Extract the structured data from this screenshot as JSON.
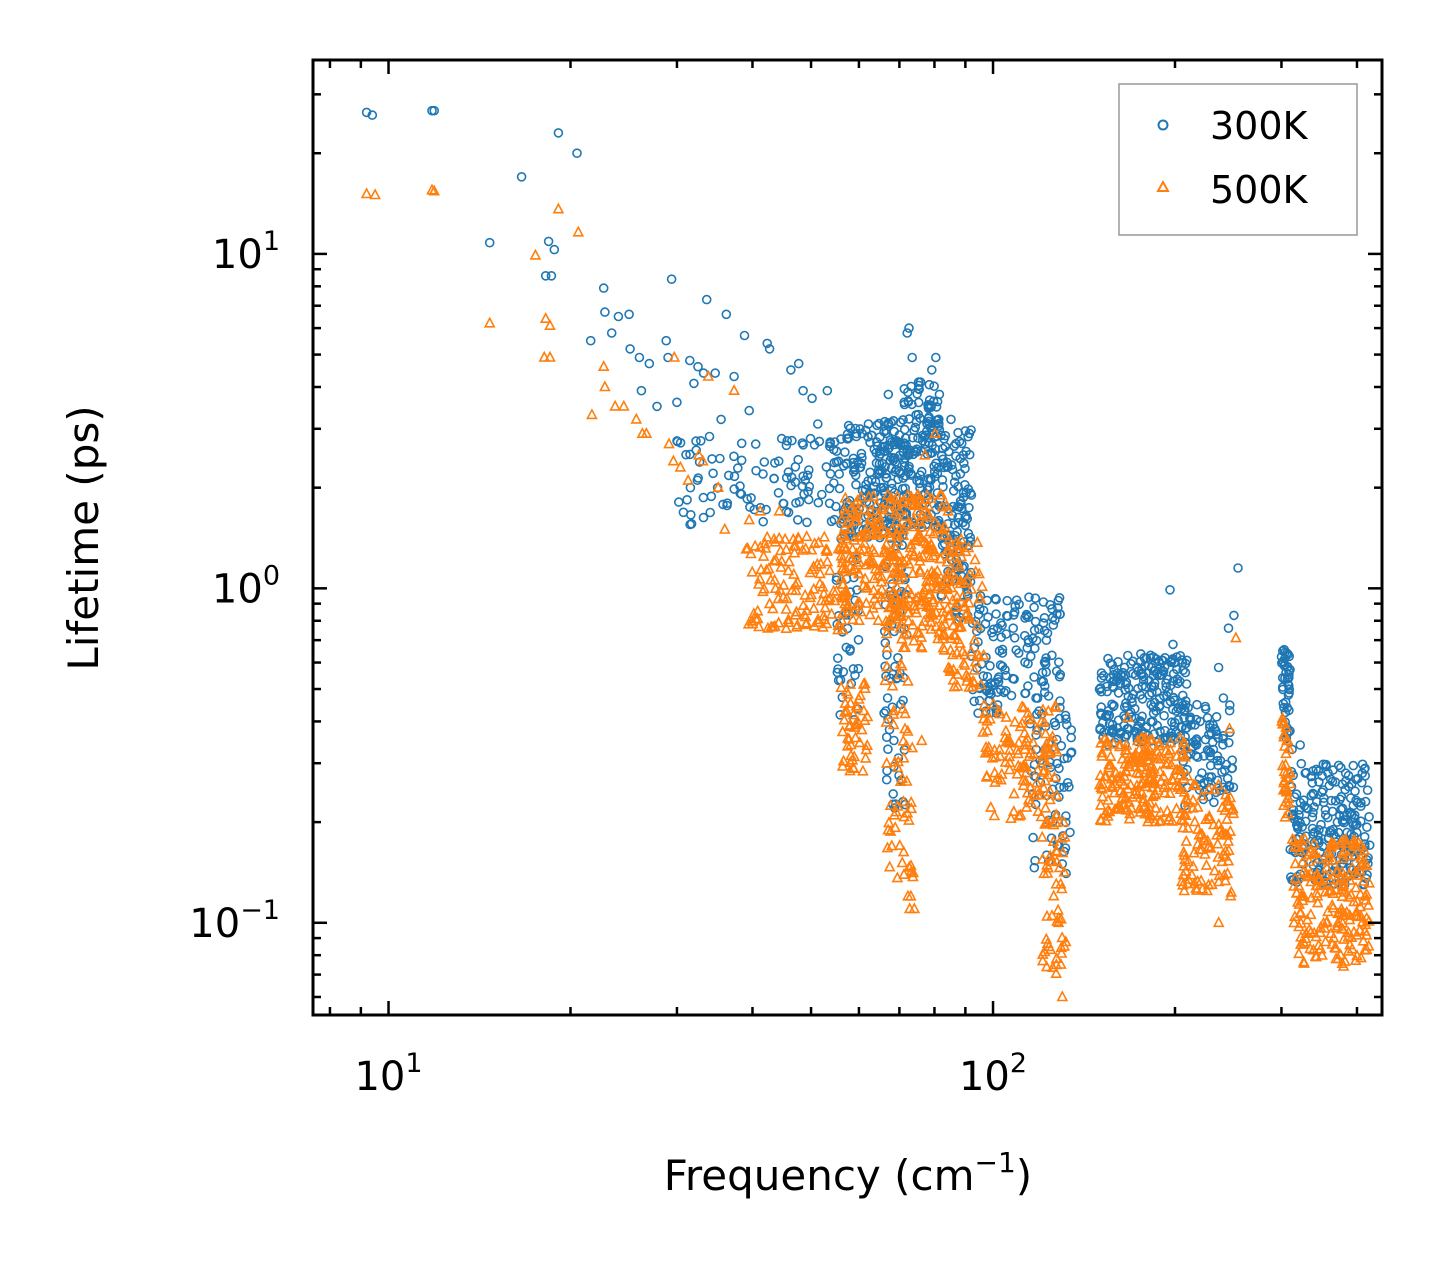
{
  "chart_data": {
    "type": "scatter",
    "title": "",
    "xlabel": "Frequency (cm",
    "xlabel_sup": "−1",
    "xlabel_suffix": ")",
    "ylabel": "Lifetime (ps)",
    "xscale": "log",
    "yscale": "log",
    "xlim": [
      7.5,
      440
    ],
    "ylim": [
      0.053,
      38
    ],
    "x_ticks": [
      {
        "value": 10,
        "base": "10",
        "exp": "1"
      },
      {
        "value": 100,
        "base": "10",
        "exp": "2"
      }
    ],
    "y_ticks": [
      {
        "value": 0.1,
        "base": "10",
        "exp": "−1"
      },
      {
        "value": 1,
        "base": "10",
        "exp": "0"
      },
      {
        "value": 10,
        "base": "10",
        "exp": "1"
      }
    ],
    "legend_position": "top-right",
    "series": [
      {
        "name": "300K",
        "marker": "circle",
        "color": "#1f77b4",
        "points": [
          [
            9.2,
            26.5
          ],
          [
            9.4,
            26
          ],
          [
            11.8,
            26.8
          ],
          [
            11.9,
            26.8
          ],
          [
            14.7,
            10.8
          ],
          [
            16.6,
            17
          ],
          [
            18.4,
            10.9
          ],
          [
            18.8,
            10.3
          ],
          [
            18.2,
            8.6
          ],
          [
            18.6,
            8.6
          ],
          [
            19.1,
            23
          ],
          [
            20.5,
            20
          ],
          [
            21.6,
            5.5
          ],
          [
            22.7,
            7.9
          ],
          [
            22.8,
            6.7
          ],
          [
            23.4,
            5.8
          ],
          [
            24,
            6.5
          ],
          [
            25,
            6.6
          ],
          [
            25.1,
            5.2
          ],
          [
            26,
            4.9
          ],
          [
            27,
            4.7
          ],
          [
            26.2,
            3.9
          ],
          [
            27.8,
            3.5
          ],
          [
            28.8,
            5.5
          ],
          [
            29,
            4.9
          ],
          [
            29.4,
            8.4
          ],
          [
            30,
            3.6
          ],
          [
            31.5,
            4.8
          ],
          [
            32,
            4.1
          ],
          [
            32.5,
            4.6
          ],
          [
            33.2,
            4.4
          ],
          [
            33.6,
            7.3
          ],
          [
            34.7,
            4.4
          ],
          [
            35.5,
            3.2
          ],
          [
            36.2,
            6.6
          ],
          [
            37.3,
            4.3
          ],
          [
            38.8,
            5.7
          ],
          [
            39.5,
            3.4
          ],
          [
            40.5,
            2.7
          ],
          [
            42.3,
            5.4
          ],
          [
            42.7,
            5.2
          ],
          [
            44.2,
            2.4
          ],
          [
            46.3,
            4.5
          ],
          [
            47.7,
            4.7
          ],
          [
            48.5,
            3.9
          ],
          [
            50.2,
            3.7
          ],
          [
            51.3,
            3.1
          ],
          [
            53.2,
            3.9
          ],
          [
            54.5,
            2.6
          ],
          [
            55.5,
            2.4
          ],
          [
            57.5,
            2.8
          ],
          [
            58,
            0.65
          ],
          [
            59.1,
            0.55
          ],
          [
            60.2,
            2.3
          ],
          [
            62.2,
            3.1
          ],
          [
            64.7,
            2.2
          ],
          [
            65.2,
            1.8
          ],
          [
            67.1,
            3.8
          ],
          [
            68,
            0.78
          ],
          [
            69.6,
            0.62
          ],
          [
            70.4,
            0.45
          ],
          [
            71.3,
            3.6
          ],
          [
            72.1,
            5.8
          ],
          [
            72.6,
            6
          ],
          [
            73.5,
            4.9
          ],
          [
            74.6,
            3.3
          ],
          [
            75.5,
            2.1
          ],
          [
            77.2,
            2.7
          ],
          [
            78.5,
            3.1
          ],
          [
            79.2,
            4.5
          ],
          [
            80.4,
            4.9
          ],
          [
            81.2,
            2.3
          ],
          [
            83,
            2.8
          ],
          [
            85.2,
            3.2
          ],
          [
            88.3,
            2.2
          ],
          [
            92.1,
            1.9
          ],
          [
            95.3,
            0.95
          ],
          [
            98.1,
            0.82
          ],
          [
            102.5,
            0.65
          ],
          [
            108,
            0.76
          ],
          [
            114.2,
            0.51
          ],
          [
            117.8,
            0.47
          ],
          [
            120.3,
            0.42
          ],
          [
            124.5,
            0.32
          ],
          [
            127.1,
            0.27
          ],
          [
            128.5,
            0.17
          ],
          [
            130.2,
            0.15
          ],
          [
            157.3,
            0.45
          ],
          [
            162.4,
            0.52
          ],
          [
            167.1,
            0.63
          ],
          [
            172.2,
            0.55
          ],
          [
            176.5,
            0.51
          ],
          [
            181.3,
            0.48
          ],
          [
            186.1,
            0.43
          ],
          [
            189.2,
            0.58
          ],
          [
            192.5,
            0.62
          ],
          [
            196.2,
            0.99
          ],
          [
            198.5,
            0.68
          ],
          [
            202.1,
            0.52
          ],
          [
            205.3,
            0.61
          ],
          [
            208.1,
            0.56
          ],
          [
            212.3,
            0.32
          ],
          [
            216.5,
            0.35
          ],
          [
            220.1,
            0.4
          ],
          [
            226.4,
            0.41
          ],
          [
            231.2,
            0.39
          ],
          [
            236.1,
            0.58
          ],
          [
            240.5,
            0.47
          ],
          [
            245.2,
            0.76
          ],
          [
            250.3,
            0.83
          ],
          [
            254.2,
            1.15
          ],
          [
            301.5,
            0.65
          ],
          [
            305.2,
            0.56
          ],
          [
            308.1,
            0.48
          ],
          [
            312.4,
            0.33
          ],
          [
            322.2,
            0.34
          ],
          [
            328.5,
            0.28
          ],
          [
            336.1,
            0.24
          ],
          [
            343.2,
            0.23
          ],
          [
            355.1,
            0.21
          ],
          [
            365.4,
            0.19
          ],
          [
            371.2,
            0.2
          ],
          [
            378.5,
            0.22
          ],
          [
            383.2,
            0.28
          ],
          [
            392.1,
            0.26
          ],
          [
            401.5,
            0.27
          ],
          [
            408.2,
            0.28
          ]
        ],
        "dense_clusters": [
          {
            "x": [
              30,
              58
            ],
            "y": [
              1.55,
              2.9
            ],
            "n": 110
          },
          {
            "x": [
              56,
              71
            ],
            "y": [
              1.4,
              3.2
            ],
            "n": 180
          },
          {
            "x": [
              55,
              60
            ],
            "y": [
              0.4,
              1.3
            ],
            "n": 35
          },
          {
            "x": [
              66,
              72
            ],
            "y": [
              0.22,
              2.0
            ],
            "n": 70
          },
          {
            "x": [
              71,
              82
            ],
            "y": [
              1.5,
              4.2
            ],
            "n": 150
          },
          {
            "x": [
              82,
              92
            ],
            "y": [
              0.8,
              3.0
            ],
            "n": 120
          },
          {
            "x": [
              92,
              130
            ],
            "y": [
              0.42,
              0.95
            ],
            "n": 140
          },
          {
            "x": [
              115,
              135
            ],
            "y": [
              0.14,
              0.45
            ],
            "n": 60
          },
          {
            "x": [
              150,
              210
            ],
            "y": [
              0.34,
              0.64
            ],
            "n": 220
          },
          {
            "x": [
              205,
              250
            ],
            "y": [
              0.22,
              0.45
            ],
            "n": 90
          },
          {
            "x": [
              300,
              310
            ],
            "y": [
              0.35,
              0.66
            ],
            "n": 40
          },
          {
            "x": [
              310,
              420
            ],
            "y": [
              0.13,
              0.3
            ],
            "n": 210
          }
        ]
      },
      {
        "name": "500K",
        "marker": "triangle",
        "color": "#ff7f0e",
        "points": [
          [
            9.2,
            15.1
          ],
          [
            9.5,
            15
          ],
          [
            11.8,
            15.5
          ],
          [
            11.9,
            15.4
          ],
          [
            14.7,
            6.2
          ],
          [
            17.5,
            9.9
          ],
          [
            18.2,
            6.4
          ],
          [
            18.5,
            6.1
          ],
          [
            18.1,
            4.9
          ],
          [
            18.5,
            4.9
          ],
          [
            19.1,
            13.6
          ],
          [
            20.6,
            11.6
          ],
          [
            21.7,
            3.3
          ],
          [
            22.7,
            4.6
          ],
          [
            22.8,
            4
          ],
          [
            23.7,
            3.5
          ],
          [
            24.5,
            3.5
          ],
          [
            25.7,
            3.2
          ],
          [
            26.3,
            2.9
          ],
          [
            26.7,
            2.9
          ],
          [
            29.1,
            2.7
          ],
          [
            29.6,
            2.4
          ],
          [
            29.7,
            4.9
          ],
          [
            30.4,
            2.3
          ],
          [
            31.3,
            2.1
          ],
          [
            32.6,
            2.5
          ],
          [
            33.1,
            2.4
          ],
          [
            33.8,
            4.3
          ],
          [
            35.1,
            2
          ],
          [
            36,
            1.5
          ],
          [
            37.3,
            3.9
          ],
          [
            39.5,
            1.6
          ],
          [
            41.2,
            1.7
          ],
          [
            44.3,
            1.7
          ],
          [
            45.3,
            1.4
          ],
          [
            47.7,
            1.4
          ],
          [
            50.1,
            1.3
          ],
          [
            53.2,
            1.2
          ],
          [
            55.1,
            0.98
          ],
          [
            56.4,
            0.75
          ],
          [
            58.2,
            0.34
          ],
          [
            58.7,
            0.29
          ],
          [
            59.2,
            0.39
          ],
          [
            61.7,
            0.9
          ],
          [
            66.2,
            1.3
          ],
          [
            68.5,
            0.43
          ],
          [
            70.1,
            0.17
          ],
          [
            71.1,
            0.23
          ],
          [
            72.3,
            0.12
          ],
          [
            72.8,
            0.11
          ],
          [
            73.1,
            0.12
          ],
          [
            74.1,
            0.11
          ],
          [
            75.2,
            1.9
          ],
          [
            76.2,
            0.35
          ],
          [
            77.1,
            2.5
          ],
          [
            78.4,
            1.3
          ],
          [
            80.2,
            2.9
          ],
          [
            82.2,
            1.9
          ],
          [
            84.3,
            1.7
          ],
          [
            88.5,
            1.4
          ],
          [
            93.2,
            0.7
          ],
          [
            96.5,
            0.63
          ],
          [
            100.2,
            0.45
          ],
          [
            106.5,
            0.35
          ],
          [
            112.1,
            0.29
          ],
          [
            117.3,
            0.24
          ],
          [
            122.1,
            0.22
          ],
          [
            127.2,
            0.21
          ],
          [
            128.3,
            0.1
          ],
          [
            129.5,
            0.075
          ],
          [
            130.2,
            0.06
          ],
          [
            131.2,
            0.085
          ],
          [
            155.4,
            0.29
          ],
          [
            162.2,
            0.34
          ],
          [
            167.1,
            0.41
          ],
          [
            172.1,
            0.32
          ],
          [
            178.5,
            0.28
          ],
          [
            185.1,
            0.26
          ],
          [
            195.2,
            0.32
          ],
          [
            204.2,
            0.25
          ],
          [
            214.1,
            0.22
          ],
          [
            218.3,
            0.19
          ],
          [
            224.1,
            0.16
          ],
          [
            230.2,
            0.13
          ],
          [
            236.2,
            0.1
          ],
          [
            240.3,
            0.16
          ],
          [
            246.1,
            0.38
          ],
          [
            252.2,
            0.71
          ],
          [
            300.5,
            0.4
          ],
          [
            305.2,
            0.32
          ],
          [
            310.3,
            0.26
          ],
          [
            316.2,
            0.15
          ],
          [
            325.1,
            0.12
          ],
          [
            335.5,
            0.14
          ],
          [
            344.2,
            0.12
          ],
          [
            356.2,
            0.1
          ],
          [
            366.1,
            0.09
          ],
          [
            372.2,
            0.078
          ],
          [
            380.1,
            0.074
          ],
          [
            395.3,
            0.17
          ],
          [
            408.2,
            0.16
          ]
        ],
        "dense_clusters": [
          {
            "x": [
              39,
              58
            ],
            "y": [
              0.75,
              1.45
            ],
            "n": 130
          },
          {
            "x": [
              56,
              71
            ],
            "y": [
              0.8,
              1.9
            ],
            "n": 170
          },
          {
            "x": [
              56,
              62
            ],
            "y": [
              0.28,
              0.52
            ],
            "n": 45
          },
          {
            "x": [
              66,
              74
            ],
            "y": [
              0.13,
              1.0
            ],
            "n": 70
          },
          {
            "x": [
              71,
              84
            ],
            "y": [
              0.65,
              1.9
            ],
            "n": 150
          },
          {
            "x": [
              84,
              96
            ],
            "y": [
              0.5,
              1.4
            ],
            "n": 90
          },
          {
            "x": [
              96,
              128
            ],
            "y": [
              0.2,
              0.45
            ],
            "n": 120
          },
          {
            "x": [
              120,
              132
            ],
            "y": [
              0.07,
              0.2
            ],
            "n": 50
          },
          {
            "x": [
              150,
              210
            ],
            "y": [
              0.2,
              0.36
            ],
            "n": 200
          },
          {
            "x": [
              205,
              250
            ],
            "y": [
              0.12,
              0.26
            ],
            "n": 90
          },
          {
            "x": [
              300,
              310
            ],
            "y": [
              0.2,
              0.42
            ],
            "n": 30
          },
          {
            "x": [
              310,
              420
            ],
            "y": [
              0.075,
              0.18
            ],
            "n": 200
          }
        ]
      }
    ]
  }
}
